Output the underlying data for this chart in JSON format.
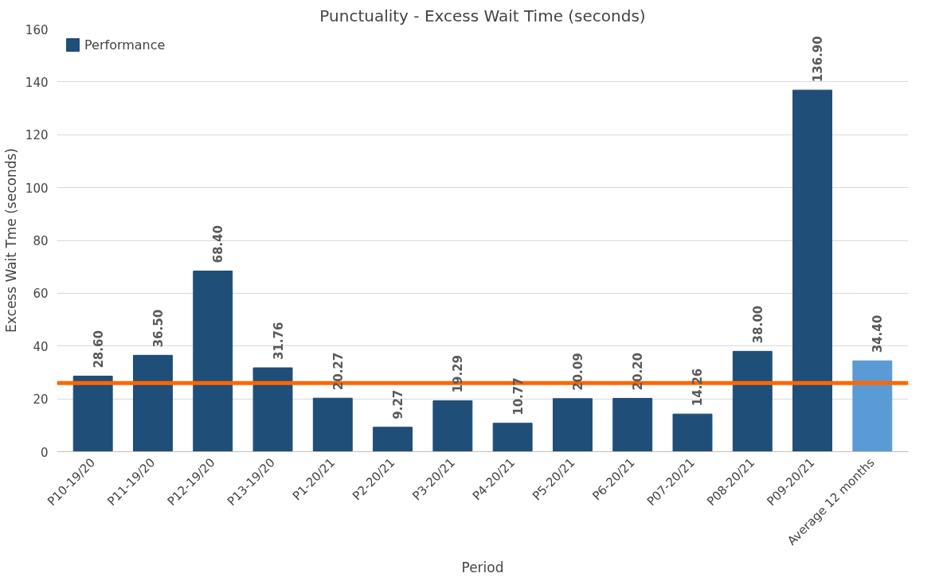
{
  "chart_data": {
    "type": "bar",
    "title": "Punctuality - Excess Wait Time (seconds)",
    "xlabel": "Period",
    "ylabel": "Excess Wait Tme (seconds)",
    "categories": [
      "P10-19/20",
      "P11-19/20",
      "P12-19/20",
      "P13-19/20",
      "P1-20/21",
      "P2-20/21",
      "P3-20/21",
      "P4-20/21",
      "P5-20/21",
      "P6-20/21",
      "P07-20/21",
      "P08-20/21",
      "P09-20/21",
      "Average 12 months"
    ],
    "series": [
      {
        "name": "Performance",
        "color": "#1f4e79",
        "colors": [
          "#1f4e79",
          "#1f4e79",
          "#1f4e79",
          "#1f4e79",
          "#1f4e79",
          "#1f4e79",
          "#1f4e79",
          "#1f4e79",
          "#1f4e79",
          "#1f4e79",
          "#1f4e79",
          "#1f4e79",
          "#1f4e79",
          "#5b9bd5"
        ],
        "values": [
          28.6,
          36.5,
          68.4,
          31.76,
          20.27,
          9.27,
          19.29,
          10.77,
          20.09,
          20.2,
          14.26,
          38.0,
          136.9,
          34.4
        ],
        "value_labels": [
          "28.60",
          "36.50",
          "68.40",
          "31.76",
          "20.27",
          "9.27",
          "19.29",
          "10.77",
          "20.09",
          "20.20",
          "14.26",
          "38.00",
          "136.90",
          "34.40"
        ]
      }
    ],
    "ylim": [
      0,
      160
    ],
    "yticks": [
      0,
      20,
      40,
      60,
      80,
      100,
      120,
      140,
      160
    ],
    "grid": "y",
    "legend": "top left",
    "ref_lines": [
      {
        "axis": "y",
        "value": 26,
        "color": "#ff6600"
      }
    ]
  }
}
